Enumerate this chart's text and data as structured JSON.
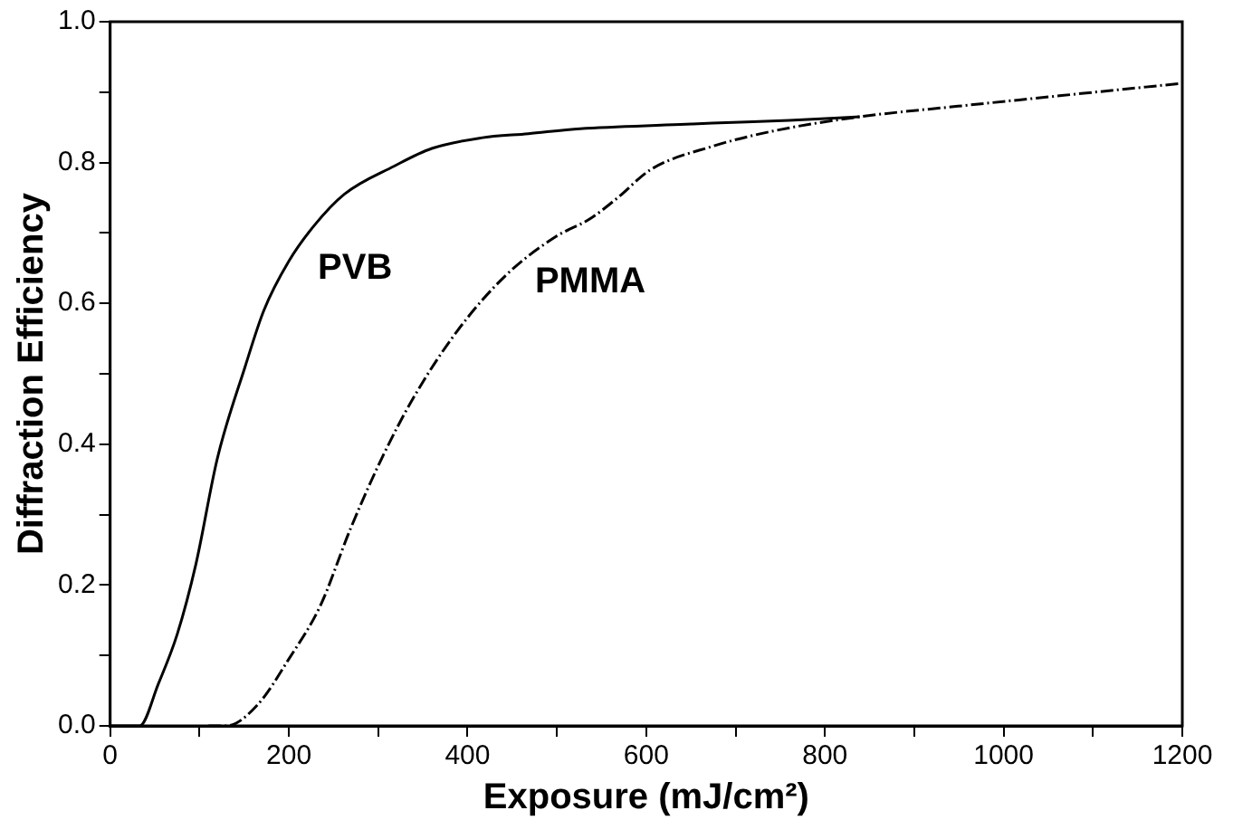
{
  "chart_data": {
    "type": "line",
    "xlabel": "Exposure (mJ/cm²)",
    "ylabel": "Diffraction Efficiency",
    "xlim": [
      0,
      1200
    ],
    "ylim": [
      0,
      1.0
    ],
    "xticks": [
      0,
      {
        "value": 100,
        "label": null
      },
      200,
      {
        "value": 300,
        "label": null
      },
      400,
      {
        "value": 500,
        "label": null
      },
      600,
      {
        "value": 700,
        "label": null
      },
      800,
      {
        "value": 900,
        "label": null
      },
      1000,
      {
        "value": 1100,
        "label": null
      },
      1200
    ],
    "yticks": [
      {
        "value": 0,
        "label": "0.0"
      },
      {
        "value": 0.1,
        "label": null
      },
      0.2,
      {
        "value": 0.3,
        "label": null
      },
      0.4,
      {
        "value": 0.5,
        "label": null
      },
      0.6,
      {
        "value": 0.7,
        "label": null
      },
      0.8,
      {
        "value": 0.9,
        "label": null
      },
      {
        "value": 1.0,
        "label": "1.0"
      }
    ],
    "grid": false,
    "legend": false,
    "marker": "none",
    "series": [
      {
        "name": "PVB",
        "color": "#000000",
        "line_style": "solid",
        "x": [
          0,
          20,
          33,
          54,
          75,
          96,
          120,
          151,
          172,
          200,
          228,
          262,
          318,
          360,
          415,
          468,
          526,
          638,
          674,
          760,
          839
        ],
        "values": [
          0,
          0,
          0,
          0.06,
          0.13,
          0.23,
          0.38,
          0.51,
          0.59,
          0.66,
          0.71,
          0.755,
          0.795,
          0.82,
          0.835,
          0.841,
          0.848,
          0.854,
          0.856,
          0.86,
          0.865
        ]
      },
      {
        "name": "PMMA",
        "color": "#000000",
        "line_style": "dashed",
        "x": [
          110,
          130,
          165,
          200,
          235,
          269,
          304,
          339,
          388,
          443,
          499,
          537,
          568,
          605,
          674,
          743,
          839,
          949,
          1087,
          1196
        ],
        "values": [
          0,
          0,
          0.03,
          0.095,
          0.17,
          0.28,
          0.38,
          0.465,
          0.56,
          0.64,
          0.695,
          0.72,
          0.75,
          0.79,
          0.823,
          0.845,
          0.865,
          0.88,
          0.898,
          0.912
        ]
      }
    ]
  }
}
